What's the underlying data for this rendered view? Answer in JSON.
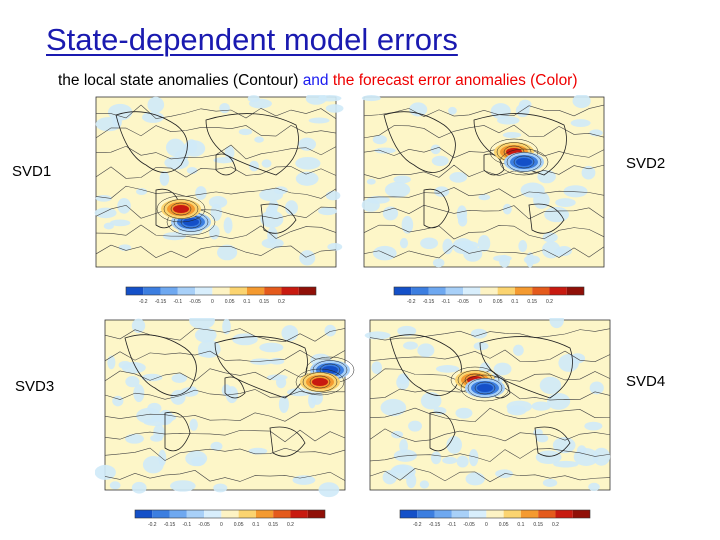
{
  "title": "State-dependent model errors",
  "subtitle": {
    "part1": "the local state anomalies (Contour) ",
    "part2": "and ",
    "part3": "the forecast error anomalies (Color)"
  },
  "panels": [
    {
      "label": "SVD1"
    },
    {
      "label": "SVD2"
    },
    {
      "label": "SVD3"
    },
    {
      "label": "SVD4"
    }
  ],
  "colorbar": {
    "ticks": [
      "-0.2",
      "-0.15",
      "-0.1",
      "-0.05",
      "0",
      "0.05",
      "0.1",
      "0.15",
      "0.2"
    ],
    "colors": [
      "#1450c8",
      "#3c7ee0",
      "#6ea8f0",
      "#a8d0f8",
      "#d8eefc",
      "#fdf3c4",
      "#fbd470",
      "#f49a30",
      "#e45a1c",
      "#c81a10",
      "#901008"
    ]
  },
  "colors": {
    "map_bg": "#fdf6c8",
    "map_light_blue": "#cfeaf8",
    "coast": "#222222",
    "contour": "#444444"
  }
}
